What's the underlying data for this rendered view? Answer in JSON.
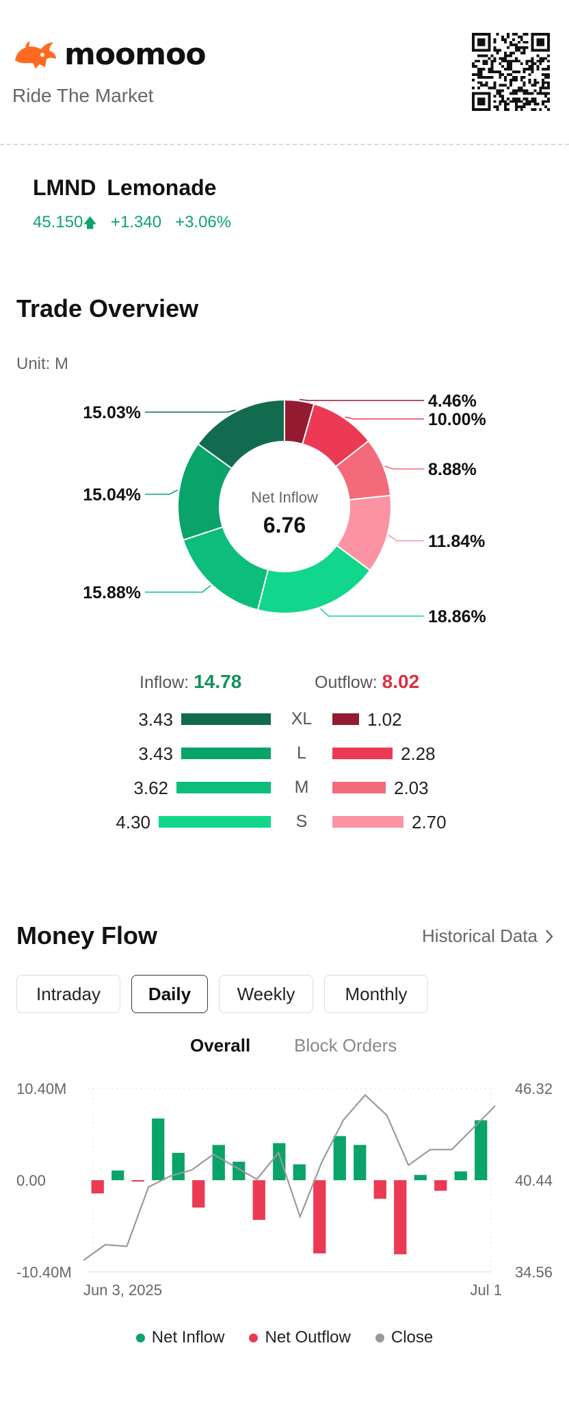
{
  "header": {
    "brand": "moomoo",
    "tagline": "Ride The Market",
    "logo_icon": "bull-logo-icon",
    "qr_icon": "qr-code-icon"
  },
  "stock": {
    "symbol": "LMND",
    "name": "Lemonade",
    "price": "45.150",
    "change": "+1.340",
    "change_pct": "+3.06%",
    "trend_icon": "arrow-up-icon",
    "up_color": "#0fa36a"
  },
  "trade_overview": {
    "title": "Trade Overview",
    "unit": "Unit: M",
    "center_label": "Net Inflow",
    "center_value": "6.76",
    "inflow_label": "Inflow:",
    "inflow_value": "14.78",
    "outflow_label": "Outflow:",
    "outflow_value": "8.02",
    "rows": [
      {
        "class": "XL",
        "inflow": "3.43",
        "outflow": "1.02"
      },
      {
        "class": "L",
        "inflow": "3.43",
        "outflow": "2.28"
      },
      {
        "class": "M",
        "inflow": "3.62",
        "outflow": "2.03"
      },
      {
        "class": "S",
        "inflow": "4.30",
        "outflow": "2.70"
      }
    ],
    "inflow_colors": [
      "#126b4f",
      "#0aa36a",
      "#0dbd7b",
      "#12d68c"
    ],
    "outflow_colors": [
      "#941a30",
      "#ec3a55",
      "#f36a7b",
      "#fb93a3"
    ]
  },
  "chart_data": [
    {
      "type": "pie",
      "title": "",
      "center_label": "Net Inflow",
      "center_value": "6.76",
      "slices": [
        {
          "label": "XL Outflow",
          "value": 4.46,
          "display": "4.46%"
        },
        {
          "label": "L Outflow",
          "value": 10.0,
          "display": "10.00%"
        },
        {
          "label": "M Outflow",
          "value": 8.88,
          "display": "8.88%"
        },
        {
          "label": "S Outflow",
          "value": 11.84,
          "display": "11.84%"
        },
        {
          "label": "S Inflow",
          "value": 18.86,
          "display": "18.86%"
        },
        {
          "label": "M Inflow",
          "value": 15.88,
          "display": "15.88%"
        },
        {
          "label": "L Inflow",
          "value": 15.04,
          "display": "15.04%"
        },
        {
          "label": "XL Inflow",
          "value": 15.03,
          "display": "15.03%"
        }
      ]
    },
    {
      "type": "bar",
      "title": "",
      "x_start_label": "Jun 3, 2025",
      "x_end_label": "Jul 1",
      "y_left_ticks": [
        "10.40M",
        "0.00",
        "-10.40M"
      ],
      "y_right_ticks": [
        "46.32",
        "40.44",
        "34.56"
      ],
      "ylim_left": [
        -10.4,
        10.4
      ],
      "ylim_right": [
        34.56,
        46.32
      ],
      "net_flow_millions": [
        -1.5,
        1.1,
        -0.1,
        7.0,
        3.1,
        -3.1,
        4.0,
        2.1,
        -4.5,
        4.2,
        1.8,
        -8.3,
        5.0,
        4.0,
        -2.1,
        -8.4,
        0.6,
        -1.2,
        1.0,
        6.8
      ],
      "close": [
        35.3,
        36.3,
        36.2,
        40.0,
        40.7,
        41.1,
        42.1,
        41.3,
        40.5,
        42.2,
        38.1,
        41.6,
        44.3,
        45.9,
        44.6,
        41.4,
        42.4,
        42.4,
        43.8,
        45.2
      ],
      "close_positions": [
        0.0,
        0.19,
        0.29,
        0.38,
        0.45,
        0.5,
        0.55,
        0.61,
        0.66,
        0.72,
        0.77,
        0.81,
        0.85,
        0.89,
        0.93,
        0.96,
        1.0,
        1.0,
        1.0,
        1.0
      ],
      "series": [
        {
          "name": "Net Inflow",
          "color": "#0aa36a"
        },
        {
          "name": "Net Outflow",
          "color": "#ec3a55"
        },
        {
          "name": "Close",
          "color": "#9a9a9a"
        }
      ]
    }
  ],
  "money_flow": {
    "title": "Money Flow",
    "historical_label": "Historical Data",
    "historical_icon": "chevron-right-icon",
    "tabs": [
      "Intraday",
      "Daily",
      "Weekly",
      "Monthly"
    ],
    "active_tab": "Daily",
    "subtabs": [
      "Overall",
      "Block Orders"
    ],
    "active_subtab": "Overall",
    "legend": [
      "Net Inflow",
      "Net Outflow",
      "Close"
    ]
  }
}
